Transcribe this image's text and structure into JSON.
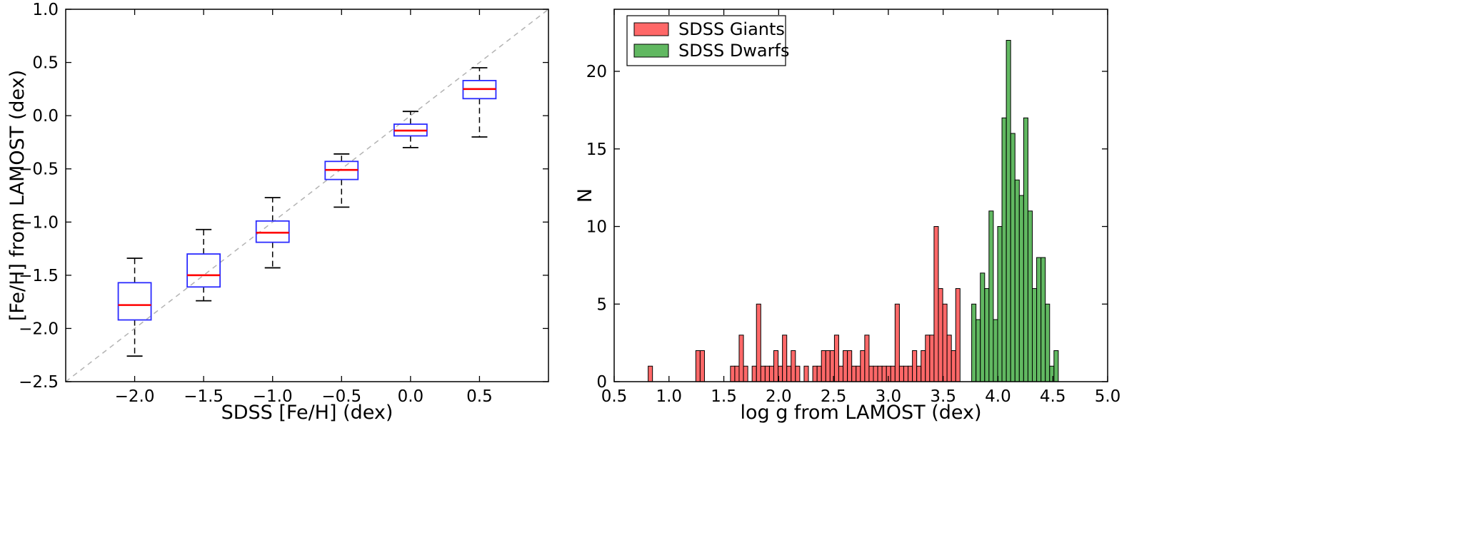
{
  "chart_data": [
    {
      "type": "box",
      "title": "",
      "xlabel": "SDSS [Fe/H] (dex)",
      "ylabel": "[Fe/H] from LAMOST (dex)",
      "xlim": [
        -2.5,
        1.0
      ],
      "ylim": [
        -2.5,
        1.0
      ],
      "xticks": [
        -2.0,
        -1.5,
        -1.0,
        -0.5,
        0.0,
        0.5
      ],
      "xtick_labels": [
        "−2.0",
        "−1.5",
        "−1.0",
        "−0.5",
        "0.0",
        "0.5"
      ],
      "yticks": [
        -2.5,
        -2.0,
        -1.5,
        -1.0,
        -0.5,
        0.0,
        0.5,
        1.0
      ],
      "ytick_labels": [
        "−2.5",
        "−2.0",
        "−1.5",
        "−1.0",
        "−0.5",
        "0.0",
        "0.5",
        "1.0"
      ],
      "reference_line": {
        "from": [
          -2.5,
          -2.5
        ],
        "to": [
          1.0,
          1.0
        ],
        "style": "dashed",
        "color": "#b3b3b3"
      },
      "box_color": "#2b2bff",
      "median_color": "#ff0000",
      "whisker_color": "#000000",
      "boxes": [
        {
          "x": -2.0,
          "whisker_low": -2.26,
          "q1": -1.92,
          "median": -1.78,
          "q3": -1.57,
          "whisker_high": -1.34
        },
        {
          "x": -1.5,
          "whisker_low": -1.74,
          "q1": -1.61,
          "median": -1.5,
          "q3": -1.3,
          "whisker_high": -1.07
        },
        {
          "x": -1.0,
          "whisker_low": -1.43,
          "q1": -1.19,
          "median": -1.1,
          "q3": -0.99,
          "whisker_high": -0.77
        },
        {
          "x": -0.5,
          "whisker_low": -0.86,
          "q1": -0.6,
          "median": -0.51,
          "q3": -0.43,
          "whisker_high": -0.36
        },
        {
          "x": 0.0,
          "whisker_low": -0.3,
          "q1": -0.19,
          "median": -0.14,
          "q3": -0.08,
          "whisker_high": 0.04
        },
        {
          "x": 0.5,
          "whisker_low": -0.2,
          "q1": 0.16,
          "median": 0.25,
          "q3": 0.33,
          "whisker_high": 0.45
        }
      ]
    },
    {
      "type": "histogram",
      "title": "",
      "xlabel": "log g from LAMOST (dex)",
      "ylabel": "N",
      "xlim": [
        0.5,
        5.0
      ],
      "ylim": [
        0,
        24
      ],
      "xticks": [
        0.5,
        1.0,
        1.5,
        2.0,
        2.5,
        3.0,
        3.5,
        4.0,
        4.5,
        5.0
      ],
      "xtick_labels": [
        "0.5",
        "1.0",
        "1.5",
        "2.0",
        "2.5",
        "3.0",
        "3.5",
        "4.0",
        "4.5",
        "5.0"
      ],
      "yticks": [
        0,
        5,
        10,
        15,
        20
      ],
      "ytick_labels": [
        "0",
        "5",
        "10",
        "15",
        "20"
      ],
      "legend_position": "top-left",
      "series": [
        {
          "name": "SDSS Giants",
          "color": "#ff4d4d",
          "alpha": 0.85,
          "bin_start": 0.81,
          "bin_width": 0.0395,
          "counts": [
            1,
            0,
            0,
            0,
            0,
            0,
            0,
            0,
            0,
            0,
            0,
            2,
            2,
            0,
            0,
            0,
            0,
            0,
            0,
            1,
            1,
            3,
            1,
            0,
            1,
            5,
            1,
            1,
            1,
            2,
            1,
            3,
            1,
            2,
            1,
            0,
            1,
            0,
            1,
            1,
            2,
            2,
            2,
            3,
            1,
            2,
            2,
            1,
            1,
            2,
            3,
            1,
            1,
            1,
            1,
            1,
            1,
            5,
            1,
            1,
            1,
            2,
            1,
            2,
            3,
            3,
            10,
            6,
            5,
            3,
            2,
            6
          ]
        },
        {
          "name": "SDSS Dwarfs",
          "color": "#2ca02c",
          "alpha": 0.75,
          "bin_start": 3.76,
          "bin_width": 0.0395,
          "counts": [
            5,
            4,
            7,
            6,
            11,
            4,
            10,
            17,
            22,
            16,
            13,
            12,
            17,
            11,
            6,
            8,
            8,
            5,
            1,
            2
          ]
        }
      ]
    }
  ]
}
